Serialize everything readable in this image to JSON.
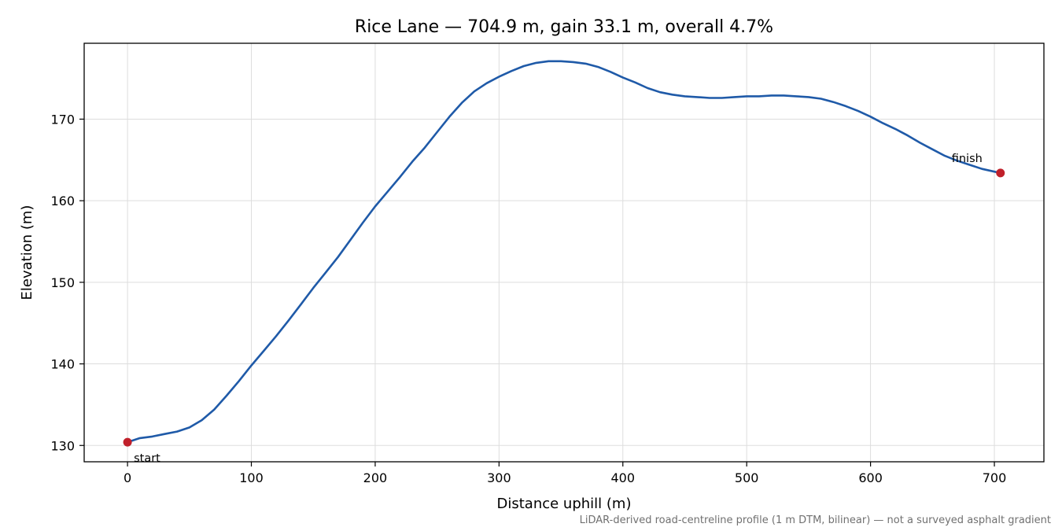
{
  "chart_data": {
    "type": "line",
    "title": "Rice Lane — 704.9 m, gain 33.1 m, overall 4.7%",
    "xlabel": "Distance uphill (m)",
    "ylabel": "Elevation (m)",
    "xlim": [
      -35,
      740
    ],
    "ylim": [
      128,
      179.3
    ],
    "xticks": [
      0,
      100,
      200,
      300,
      400,
      500,
      600,
      700
    ],
    "yticks": [
      130,
      140,
      150,
      160,
      170
    ],
    "grid": true,
    "series": [
      {
        "color": "#1f5aa8",
        "x": [
          0,
          10,
          20,
          30,
          40,
          50,
          60,
          70,
          80,
          90,
          100,
          110,
          120,
          130,
          140,
          150,
          160,
          170,
          180,
          190,
          200,
          210,
          220,
          230,
          240,
          250,
          260,
          270,
          280,
          290,
          300,
          310,
          320,
          330,
          340,
          350,
          360,
          370,
          380,
          390,
          400,
          410,
          420,
          430,
          440,
          450,
          460,
          470,
          480,
          490,
          500,
          510,
          520,
          530,
          540,
          550,
          560,
          570,
          580,
          590,
          600,
          610,
          620,
          630,
          640,
          650,
          660,
          670,
          680,
          690,
          704.9
        ],
        "y": [
          130.4,
          130.9,
          131.1,
          131.4,
          131.7,
          132.2,
          133.1,
          134.4,
          136.1,
          137.9,
          139.8,
          141.6,
          143.4,
          145.3,
          147.3,
          149.3,
          151.2,
          153.1,
          155.2,
          157.3,
          159.3,
          161.1,
          162.9,
          164.8,
          166.5,
          168.4,
          170.3,
          172.0,
          173.4,
          174.4,
          175.2,
          175.9,
          176.5,
          176.9,
          177.1,
          177.1,
          177.0,
          176.8,
          176.4,
          175.8,
          175.1,
          174.5,
          173.8,
          173.3,
          173.0,
          172.8,
          172.7,
          172.6,
          172.6,
          172.7,
          172.8,
          172.8,
          172.9,
          172.9,
          172.8,
          172.7,
          172.5,
          172.1,
          171.6,
          171.0,
          170.3,
          169.5,
          168.8,
          168.0,
          167.1,
          166.3,
          165.5,
          164.9,
          164.4,
          163.9,
          163.4
        ]
      }
    ],
    "markers": [
      {
        "x": 0,
        "y": 130.4,
        "label": "start",
        "color": "#c0202a"
      },
      {
        "x": 704.9,
        "y": 163.4,
        "label": "finish",
        "color": "#c0202a"
      }
    ],
    "footnote": "LiDAR-derived road-centreline profile (1 m DTM, bilinear) — not a surveyed asphalt gradient"
  }
}
